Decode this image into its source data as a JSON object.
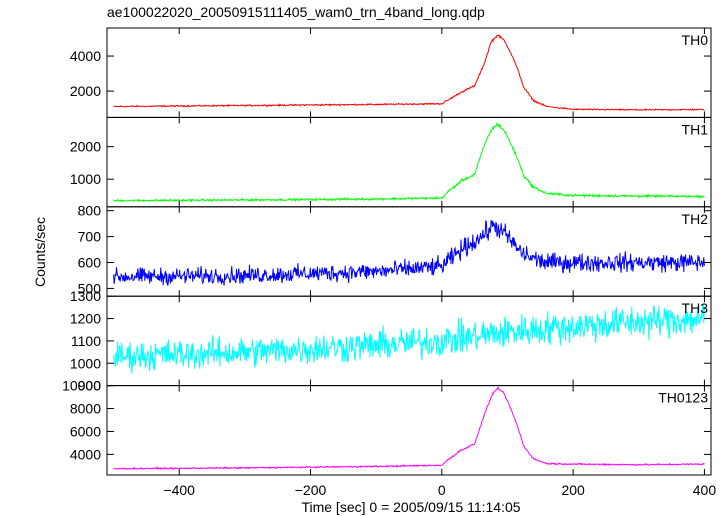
{
  "chart_data": {
    "type": "line",
    "title": "ae100022020_20050915111405_wam0_trn_4band_long.qdp",
    "xlabel": "Time [sec] 0 = 2005/09/15 11:14:05",
    "ylabel": "Counts/sec",
    "xlim": [
      -510,
      410
    ],
    "xticks": [
      -400,
      -200,
      0,
      200,
      400
    ],
    "grid": false,
    "panels": [
      {
        "name": "TH0",
        "color": "#ff0000",
        "ylim": [
          500,
          5600
        ],
        "yticks": [
          2000,
          4000
        ],
        "noise": 25,
        "x": [
          -500,
          -300,
          -100,
          0,
          10,
          30,
          50,
          65,
          75,
          85,
          95,
          105,
          115,
          125,
          140,
          160,
          200,
          300,
          400
        ],
        "y": [
          1120,
          1180,
          1240,
          1280,
          1500,
          1950,
          2300,
          3600,
          4800,
          5200,
          4900,
          4200,
          3300,
          2200,
          1450,
          1120,
          960,
          930,
          950
        ]
      },
      {
        "name": "TH1",
        "color": "#00ff00",
        "ylim": [
          150,
          2900
        ],
        "yticks": [
          1000,
          2000
        ],
        "noise": 20,
        "x": [
          -500,
          -300,
          -100,
          0,
          10,
          30,
          50,
          65,
          75,
          85,
          95,
          105,
          115,
          125,
          140,
          160,
          200,
          300,
          400
        ],
        "y": [
          340,
          360,
          390,
          420,
          620,
          950,
          1150,
          2050,
          2500,
          2700,
          2500,
          2100,
          1650,
          1100,
          750,
          560,
          500,
          480,
          470
        ]
      },
      {
        "name": "TH2",
        "color": "#0000ff",
        "ylim": [
          470,
          815
        ],
        "yticks": [
          500,
          600,
          700,
          800
        ],
        "noise": 22,
        "x": [
          -500,
          -300,
          -100,
          0,
          30,
          60,
          80,
          100,
          120,
          140,
          160,
          200,
          300,
          400
        ],
        "y": [
          545,
          550,
          565,
          585,
          650,
          700,
          745,
          700,
          640,
          615,
          600,
          600,
          600,
          600
        ]
      },
      {
        "name": "TH3",
        "color": "#00ffff",
        "ylim": [
          900,
          1300
        ],
        "yticks": [
          900,
          1000,
          1100,
          1200,
          1300
        ],
        "noise": 45,
        "x": [
          -500,
          -300,
          -100,
          0,
          100,
          200,
          300,
          400
        ],
        "y": [
          1030,
          1050,
          1080,
          1100,
          1140,
          1165,
          1185,
          1200
        ]
      },
      {
        "name": "TH0123",
        "color": "#ff00ff",
        "ylim": [
          2200,
          10000
        ],
        "yticks": [
          4000,
          6000,
          8000,
          10000
        ],
        "noise": 40,
        "x": [
          -500,
          -300,
          -100,
          0,
          10,
          30,
          50,
          65,
          75,
          85,
          95,
          105,
          115,
          125,
          140,
          160,
          200,
          300,
          400
        ],
        "y": [
          2750,
          2820,
          2950,
          3050,
          3550,
          4400,
          4900,
          7500,
          9000,
          9800,
          9300,
          8000,
          6500,
          4700,
          3600,
          3200,
          3150,
          3100,
          3150
        ]
      }
    ]
  }
}
